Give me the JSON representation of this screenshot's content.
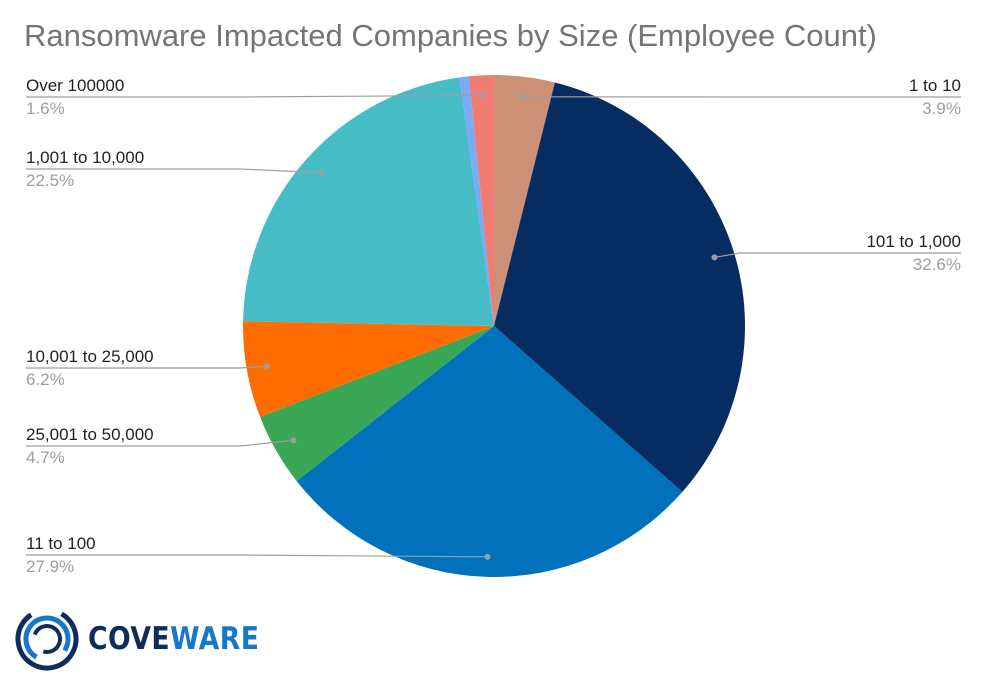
{
  "chart_data": {
    "type": "pie",
    "title": "Ransomware Impacted Companies by Size (Employee Count)",
    "start_angle_deg": 0,
    "direction": "clockwise",
    "slices": [
      {
        "label": "1 to 10",
        "value": 3.9,
        "percent_label": "3.9%",
        "color": "#cc9076",
        "side": "right"
      },
      {
        "label": "101 to 1,000",
        "value": 32.6,
        "percent_label": "32.6%",
        "color": "#072c62",
        "side": "right"
      },
      {
        "label": "11 to 100",
        "value": 27.9,
        "percent_label": "27.9%",
        "color": "#0271bc",
        "side": "left"
      },
      {
        "label": "25,001 to 50,000",
        "value": 4.7,
        "percent_label": "4.7%",
        "color": "#3aa757",
        "side": "left"
      },
      {
        "label": "10,001 to 25,000",
        "value": 6.2,
        "percent_label": "6.2%",
        "color": "#ff6d01",
        "side": "left"
      },
      {
        "label": "1,001 to 10,000",
        "value": 22.5,
        "percent_label": "22.5%",
        "color": "#46bdc6",
        "side": "left"
      },
      {
        "label": "",
        "value": 0.6,
        "percent_label": "",
        "color": "#7baaf7",
        "side": "none"
      },
      {
        "label": "Over 100000",
        "value": 1.6,
        "percent_label": "1.6%",
        "color": "#f07b72",
        "side": "left"
      }
    ]
  },
  "logo": {
    "text_part1": "COVE",
    "text_part2": "WARE"
  }
}
